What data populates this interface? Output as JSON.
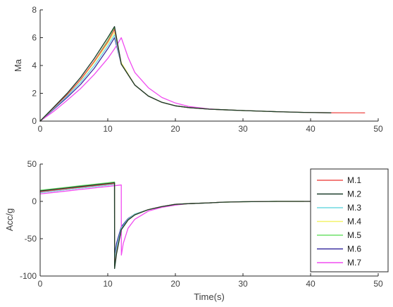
{
  "chart_data": [
    {
      "type": "line",
      "ylabel": "Ma",
      "xlabel": "",
      "xlim": [
        0,
        50
      ],
      "ylim": [
        0,
        8
      ],
      "xticks": [
        "0",
        "10",
        "20",
        "30",
        "40",
        "50"
      ],
      "yticks": [
        "0",
        "2",
        "4",
        "6",
        "8"
      ],
      "grid": false,
      "series": [
        {
          "name": "M.1",
          "color": "#ef5350",
          "x": [
            0,
            2,
            4,
            6,
            8,
            10,
            11,
            12,
            14,
            16,
            18,
            20,
            22,
            25,
            27,
            30,
            35,
            39,
            43,
            48
          ],
          "y": [
            0,
            0.95,
            1.9,
            3.0,
            4.3,
            5.7,
            6.6,
            4.1,
            2.6,
            1.8,
            1.35,
            1.1,
            0.97,
            0.86,
            0.82,
            0.76,
            0.68,
            0.63,
            0.6,
            0.59
          ]
        },
        {
          "name": "M.2",
          "color": "#1b3d2a",
          "x": [
            0,
            2,
            4,
            6,
            8,
            10,
            11,
            12,
            14,
            16,
            18,
            20,
            22,
            25,
            27,
            30,
            35,
            39,
            43
          ],
          "y": [
            0,
            1.0,
            2.0,
            3.15,
            4.5,
            6.0,
            6.8,
            4.1,
            2.6,
            1.8,
            1.35,
            1.1,
            0.97,
            0.86,
            0.82,
            0.76,
            0.68,
            0.63,
            0.6
          ]
        },
        {
          "name": "M.3",
          "color": "#6ed8e0",
          "x": [
            0,
            2,
            4,
            6,
            8,
            10,
            11,
            12,
            14,
            16,
            18,
            20,
            22,
            25,
            27,
            30,
            35,
            39
          ],
          "y": [
            0,
            0.9,
            1.8,
            2.8,
            4.0,
            5.4,
            6.2,
            4.1,
            2.6,
            1.8,
            1.35,
            1.1,
            0.97,
            0.86,
            0.82,
            0.76,
            0.68,
            0.63
          ]
        },
        {
          "name": "M.4",
          "color": "#f2f26a",
          "x": [
            0,
            2,
            4,
            6,
            8,
            10,
            11,
            12,
            14,
            16,
            18,
            20,
            22,
            25,
            27,
            30,
            35,
            39
          ],
          "y": [
            0,
            0.95,
            1.9,
            2.95,
            4.2,
            5.6,
            6.4,
            4.2,
            2.6,
            1.8,
            1.35,
            1.1,
            0.97,
            0.86,
            0.82,
            0.76,
            0.68,
            0.63
          ]
        },
        {
          "name": "M.5",
          "color": "#6ee06a",
          "x": [
            0,
            2,
            4,
            6,
            8,
            10,
            11,
            12,
            14,
            16,
            18,
            20,
            22,
            25,
            27,
            30,
            35
          ],
          "y": [
            0,
            0.95,
            1.9,
            2.95,
            4.3,
            5.8,
            6.7,
            4.1,
            2.6,
            1.8,
            1.35,
            1.1,
            0.97,
            0.86,
            0.82,
            0.76,
            0.68
          ]
        },
        {
          "name": "M.6",
          "color": "#3a2fa0",
          "x": [
            0,
            2,
            4,
            6,
            8,
            10,
            11,
            12,
            14,
            16,
            18,
            20,
            22,
            25,
            27
          ],
          "y": [
            0,
            0.85,
            1.7,
            2.65,
            3.8,
            5.2,
            6.0,
            4.1,
            2.6,
            1.8,
            1.35,
            1.1,
            0.97,
            0.86,
            0.82
          ]
        },
        {
          "name": "M.7",
          "color": "#f04cf0",
          "x": [
            0,
            2,
            4,
            6,
            8,
            10,
            11,
            12,
            13,
            14,
            16,
            18,
            20,
            22,
            25,
            27
          ],
          "y": [
            0,
            0.7,
            1.5,
            2.35,
            3.35,
            4.5,
            5.2,
            6.0,
            4.6,
            3.5,
            2.4,
            1.7,
            1.3,
            1.05,
            0.88,
            0.82
          ]
        }
      ]
    },
    {
      "type": "line",
      "ylabel": "Acc/g",
      "xlabel": "Time(s)",
      "xlim": [
        0,
        50
      ],
      "ylim": [
        -100,
        50
      ],
      "xticks": [
        "0",
        "10",
        "20",
        "30",
        "40",
        "50"
      ],
      "yticks": [
        "-100",
        "-50",
        "0",
        "50"
      ],
      "grid": false,
      "legend_position": "right",
      "series": [
        {
          "name": "M.1",
          "color": "#ef5350",
          "x": [
            0,
            2,
            4,
            6,
            8,
            10,
            11,
            11.01,
            11.3,
            12,
            13,
            14,
            16,
            18,
            20,
            22,
            25,
            27,
            30,
            35,
            40,
            48
          ],
          "y": [
            13,
            15,
            17,
            19,
            21,
            23,
            24,
            -88,
            -68,
            -38,
            -25,
            -18,
            -11,
            -7,
            -4,
            -3,
            -2,
            -1,
            -0.5,
            0,
            0,
            0
          ]
        },
        {
          "name": "M.2",
          "color": "#1b3d2a",
          "x": [
            0,
            2,
            4,
            6,
            8,
            10,
            11,
            11.01,
            11.3,
            12,
            13,
            14,
            16,
            18,
            20,
            22,
            25,
            27,
            30,
            35,
            40,
            43
          ],
          "y": [
            14,
            16,
            18,
            20,
            22,
            24,
            25,
            -90,
            -70,
            -38,
            -25,
            -18,
            -11,
            -7,
            -4,
            -3,
            -2,
            -1,
            -0.5,
            0,
            0,
            0
          ]
        },
        {
          "name": "M.3",
          "color": "#6ed8e0",
          "x": [
            0,
            2,
            4,
            6,
            8,
            10,
            11,
            11.01,
            11.3,
            12,
            13,
            14,
            16,
            18,
            20,
            22,
            25,
            27,
            30,
            35,
            39
          ],
          "y": [
            12,
            14,
            16,
            18,
            20,
            22,
            23,
            -80,
            -62,
            -36,
            -24,
            -17,
            -11,
            -7,
            -4,
            -3,
            -2,
            -1,
            -0.5,
            0,
            0
          ]
        },
        {
          "name": "M.4",
          "color": "#f2f26a",
          "x": [
            0,
            2,
            4,
            6,
            8,
            10,
            11,
            11.01,
            11.3,
            12,
            13,
            14,
            16,
            18,
            20,
            22,
            25,
            27,
            30,
            35,
            39
          ],
          "y": [
            13,
            15,
            17,
            19,
            21,
            23,
            24,
            -84,
            -64,
            -37,
            -24,
            -17,
            -11,
            -7,
            -4,
            -3,
            -2,
            -1,
            -0.5,
            0,
            0
          ]
        },
        {
          "name": "M.5",
          "color": "#6ee06a",
          "x": [
            0,
            2,
            4,
            6,
            8,
            10,
            11,
            11.01,
            11.3,
            12,
            13,
            14,
            16,
            18,
            20,
            22,
            25,
            27,
            30,
            35
          ],
          "y": [
            15,
            17,
            19,
            21,
            23,
            25,
            26,
            -86,
            -66,
            -38,
            -25,
            -18,
            -11,
            -7,
            -4,
            -3,
            -2,
            -1,
            -0.5,
            0
          ]
        },
        {
          "name": "M.6",
          "color": "#3a2fa0",
          "x": [
            0,
            2,
            4,
            6,
            8,
            10,
            11,
            11.01,
            11.3,
            12,
            13,
            14,
            16,
            18,
            20,
            22,
            25,
            27
          ],
          "y": [
            12,
            14,
            16,
            18,
            20,
            22,
            23,
            -72,
            -56,
            -34,
            -23,
            -17,
            -11,
            -7,
            -4,
            -3,
            -2,
            -1
          ]
        },
        {
          "name": "M.7",
          "color": "#f04cf0",
          "x": [
            0,
            2,
            4,
            6,
            8,
            10,
            11,
            12,
            12.01,
            12.3,
            13,
            14,
            16,
            18,
            20,
            22,
            25,
            27
          ],
          "y": [
            10,
            12,
            14,
            16,
            18,
            20,
            21,
            22,
            -72,
            -56,
            -36,
            -24,
            -13,
            -8,
            -5,
            -3,
            -2,
            -1
          ]
        }
      ]
    }
  ]
}
